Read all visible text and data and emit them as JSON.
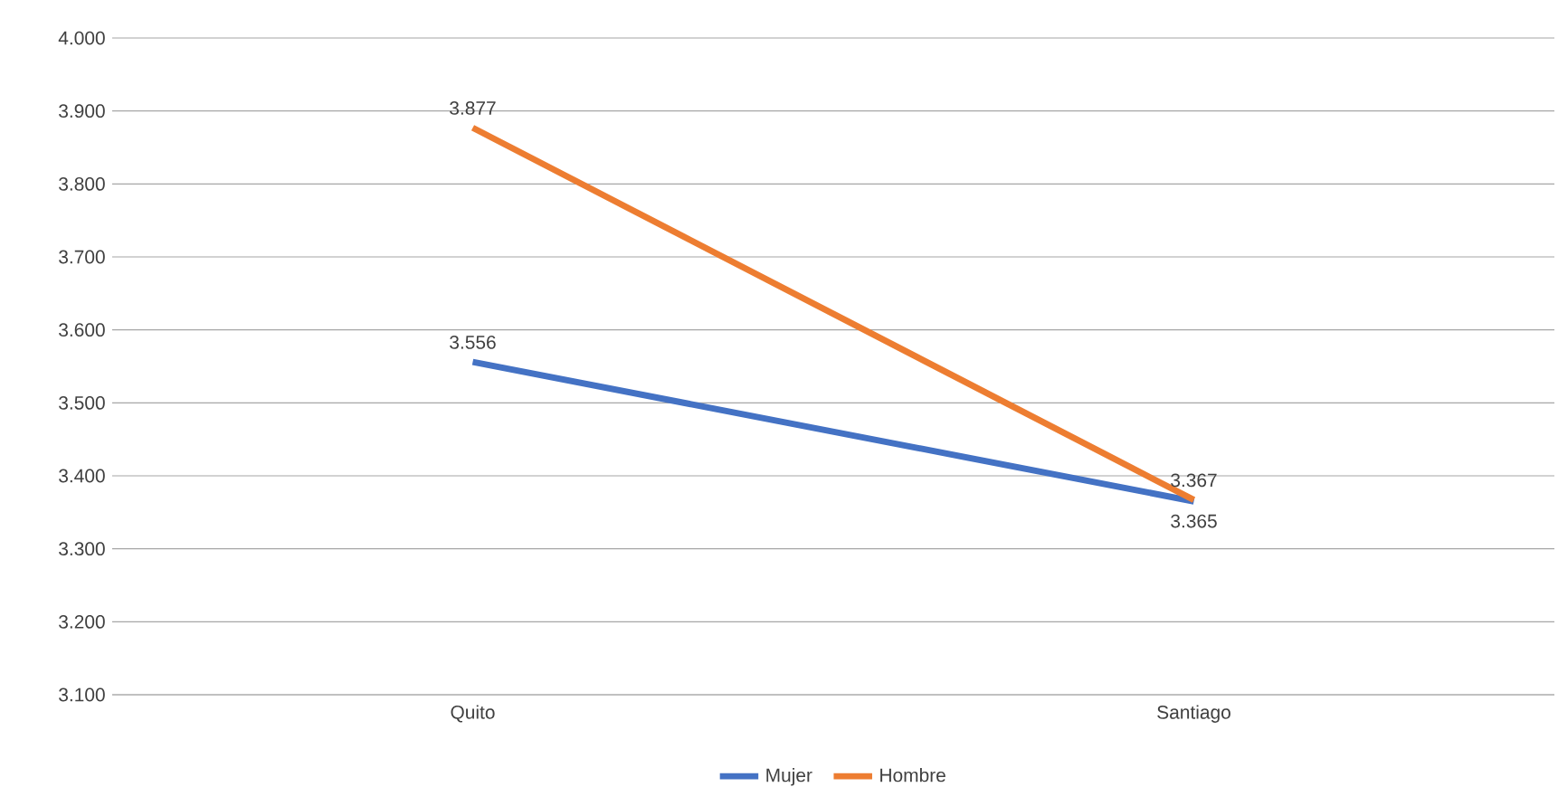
{
  "chart_data": {
    "type": "line",
    "categories": [
      "Quito",
      "Santiago"
    ],
    "series": [
      {
        "name": "Mujer",
        "color": "#4472c4",
        "values": [
          3556,
          3365
        ],
        "value_labels": [
          "3.556",
          "3.365"
        ]
      },
      {
        "name": "Hombre",
        "color": "#ed7d31",
        "values": [
          3877,
          3367
        ],
        "value_labels": [
          "3.877",
          "3.367"
        ]
      }
    ],
    "ylim": [
      3100,
      4000
    ],
    "yticks": [
      {
        "value": 3100,
        "label": "3.100"
      },
      {
        "value": 3200,
        "label": "3.200"
      },
      {
        "value": 3300,
        "label": "3.300"
      },
      {
        "value": 3400,
        "label": "3.400"
      },
      {
        "value": 3500,
        "label": "3.500"
      },
      {
        "value": 3600,
        "label": "3.600"
      },
      {
        "value": 3700,
        "label": "3.700"
      },
      {
        "value": 3800,
        "label": "3.800"
      },
      {
        "value": 3900,
        "label": "3.900"
      },
      {
        "value": 4000,
        "label": "4.000"
      }
    ],
    "grid": "y",
    "legend": "bottom",
    "marker": "none",
    "line_style": "solid"
  }
}
